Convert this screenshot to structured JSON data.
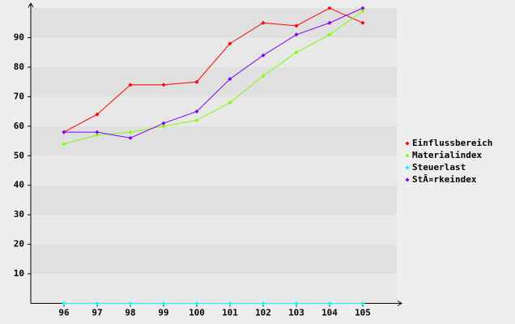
{
  "chart_data": {
    "type": "line",
    "categories": [
      "96",
      "97",
      "98",
      "99",
      "100",
      "101",
      "102",
      "103",
      "104",
      "105"
    ],
    "series": [
      {
        "name": "Einflussbereich",
        "color": "#ff0000",
        "values": [
          58,
          64,
          74,
          74,
          75,
          88,
          95,
          94,
          100,
          95
        ]
      },
      {
        "name": "Materialindex",
        "color": "#80ff00",
        "values": [
          54,
          57,
          58,
          60,
          62,
          68,
          77,
          85,
          91,
          99
        ]
      },
      {
        "name": "Steuerlast",
        "color": "#00ffff",
        "values": [
          0,
          0,
          0,
          0,
          0,
          0,
          0,
          0,
          0,
          0
        ]
      },
      {
        "name": "StÃ¤rkeindex",
        "color": "#8000ff",
        "values": [
          58,
          58,
          56,
          61,
          65,
          76,
          84,
          91,
          95,
          100
        ]
      }
    ],
    "ylim": [
      0,
      100
    ],
    "yticks": [
      10,
      20,
      30,
      40,
      50,
      60,
      70,
      80,
      90
    ],
    "grid": true
  }
}
